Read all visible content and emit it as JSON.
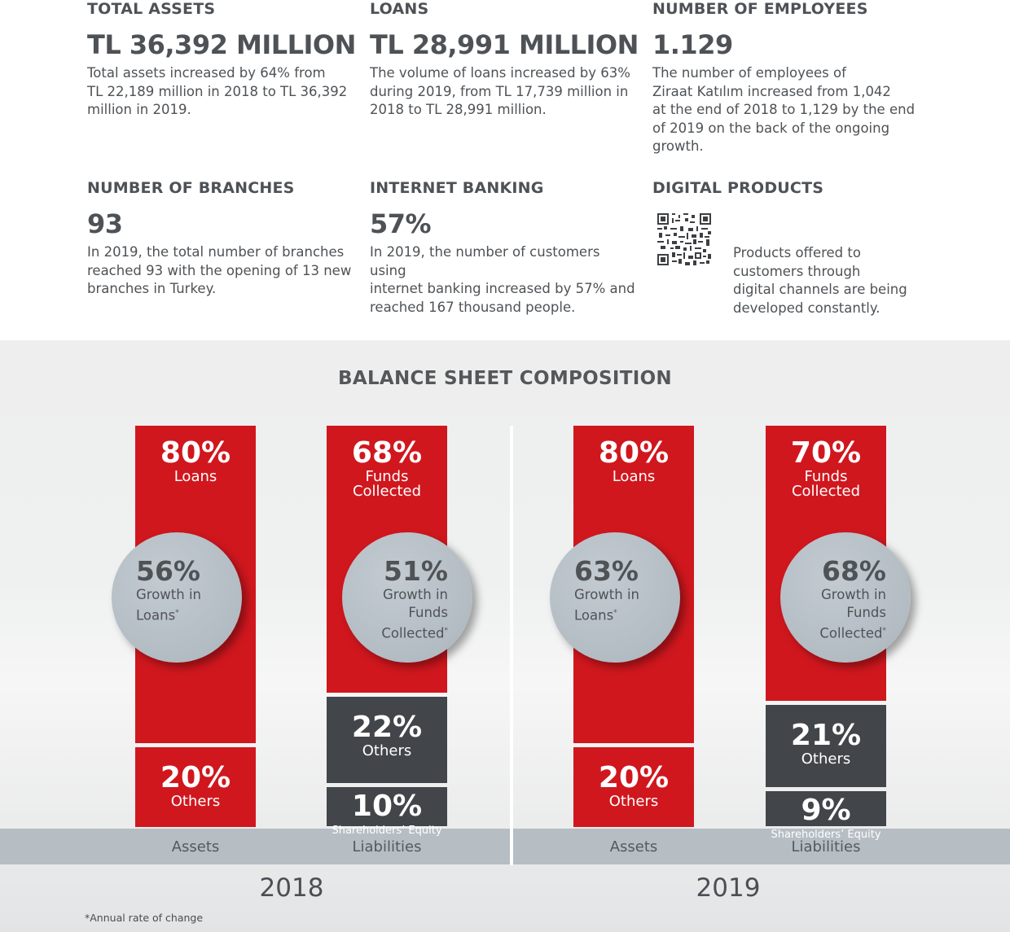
{
  "kpis": {
    "total_assets": {
      "title": "TOTAL ASSETS",
      "value": "TL 36,392 MILLION",
      "desc_lines": [
        "Total assets increased by 64% from",
        "TL 22,189 million in 2018 to TL 36,392",
        "million in 2019."
      ]
    },
    "loans": {
      "title": "LOANS",
      "value": "TL 28,991 MILLION",
      "desc_lines": [
        "The volume of loans increased by 63%",
        "during 2019, from TL 17,739 million in",
        "2018 to TL 28,991 million."
      ]
    },
    "employees": {
      "title": "NUMBER OF EMPLOYEES",
      "value": "1.129",
      "desc_lines": [
        "The number of employees of",
        "Ziraat Katılım increased from 1,042",
        "at the end of 2018 to 1,129 by the end",
        "of 2019 on the back of the ongoing",
        "growth."
      ]
    },
    "branches": {
      "title": "NUMBER OF BRANCHES",
      "value": "93",
      "desc_lines": [
        "In 2019, the total number of branches",
        "reached 93 with the opening of 13 new",
        "branches in Turkey."
      ]
    },
    "internet": {
      "title": "INTERNET BANKING",
      "value": "57%",
      "desc_lines": [
        "In 2019, the number of customers using",
        "internet banking increased by 57% and",
        "reached 167 thousand people."
      ]
    },
    "digital": {
      "title": "DIGITAL PRODUCTS",
      "qr_icon": "qr-code-icon",
      "desc_lines": [
        "Products offered to",
        "customers through",
        "digital channels are being",
        "developed constantly."
      ]
    }
  },
  "chart_data": {
    "type": "bar",
    "stacked": true,
    "title": "BALANCE SHEET COMPOSITION",
    "unit": "%",
    "groups": [
      {
        "year": "2018",
        "bars": [
          {
            "category": "Assets",
            "segments": [
              {
                "name": "Loans",
                "pct_label": "80%",
                "value": 80,
                "color": "#d0171e"
              },
              {
                "name": "Others",
                "pct_label": "20%",
                "value": 20,
                "color": "#d0171e"
              }
            ],
            "growth": {
              "pct": "56%",
              "lines": [
                "Growth in",
                "Loans*"
              ]
            }
          },
          {
            "category": "Liabilities",
            "segments": [
              {
                "name": "Funds Collected",
                "lbl_lines": [
                  "Funds",
                  "Collected"
                ],
                "pct_label": "68%",
                "value": 68,
                "color": "#d0171e"
              },
              {
                "name": "Others",
                "pct_label": "22%",
                "value": 22,
                "color": "#424549"
              },
              {
                "name": "Shareholders’ Equity",
                "pct_label": "10%",
                "value": 10,
                "color": "#424549"
              }
            ],
            "growth": {
              "pct": "51%",
              "lines": [
                "Growth in",
                "Funds",
                "Collected*"
              ]
            }
          }
        ]
      },
      {
        "year": "2019",
        "bars": [
          {
            "category": "Assets",
            "segments": [
              {
                "name": "Loans",
                "pct_label": "80%",
                "value": 80,
                "color": "#d0171e"
              },
              {
                "name": "Others",
                "pct_label": "20%",
                "value": 20,
                "color": "#d0171e"
              }
            ],
            "growth": {
              "pct": "63%",
              "lines": [
                "Growth in",
                "Loans*"
              ]
            }
          },
          {
            "category": "Liabilities",
            "segments": [
              {
                "name": "Funds Collected",
                "lbl_lines": [
                  "Funds",
                  "Collected"
                ],
                "pct_label": "70%",
                "value": 70,
                "color": "#d0171e"
              },
              {
                "name": "Others",
                "pct_label": "21%",
                "value": 21,
                "color": "#424549"
              },
              {
                "name": "Shareholders’ Equity",
                "pct_label": "9%",
                "value": 9,
                "color": "#424549"
              }
            ],
            "growth": {
              "pct": "68%",
              "lines": [
                "Growth in",
                "Funds",
                "Collected*"
              ]
            }
          }
        ]
      }
    ],
    "footnote": "*Annual rate of change"
  }
}
